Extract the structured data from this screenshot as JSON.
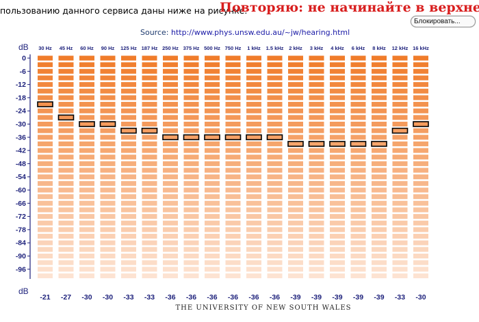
{
  "page": {
    "intro_text": "пользованию данного сервиса даны ниже на рисунке.",
    "warning_text": "Повторяю: не начинайте в верхней трет",
    "block_button_label": "Блокировать...",
    "source_label": "Source:",
    "source_url": "http://www.phys.unsw.edu.au/~jw/hearing.html",
    "footer_text": "THE UNIVERSITY OF NEW SOUTH WALES"
  },
  "colors": {
    "bar_top": "#f07c2a",
    "bar_bottom": "#fde3d2",
    "label_blue": "#1b1f7a",
    "frame": "#1b1f7a",
    "selected_border": "#000000",
    "warning_red": "#d81e1e"
  },
  "chart_data": {
    "type": "heatmap",
    "y_unit_label": "dB",
    "x_unit_label": "dB",
    "frequencies": [
      "30 Hz",
      "45 Hz",
      "60 Hz",
      "90 Hz",
      "125 Hz",
      "187 Hz",
      "250 Hz",
      "375 Hz",
      "500 Hz",
      "750 Hz",
      "1 kHz",
      "1.5 kHz",
      "2 kHz",
      "3 kHz",
      "4 kHz",
      "6 kHz",
      "8 kHz",
      "12 kHz",
      "16 kHz"
    ],
    "y_ticks": [
      "0",
      "-6",
      "-12",
      "-18",
      "-24",
      "-30",
      "-36",
      "-42",
      "-48",
      "-54",
      "-60",
      "-66",
      "-72",
      "-78",
      "-84",
      "-90",
      "-96"
    ],
    "level_step_db": 3,
    "level_count": 34,
    "selected_db": [
      -21,
      -27,
      -30,
      -30,
      -33,
      -33,
      -36,
      -36,
      -36,
      -36,
      -36,
      -36,
      -39,
      -39,
      -39,
      -39,
      -39,
      -33,
      -30
    ]
  }
}
